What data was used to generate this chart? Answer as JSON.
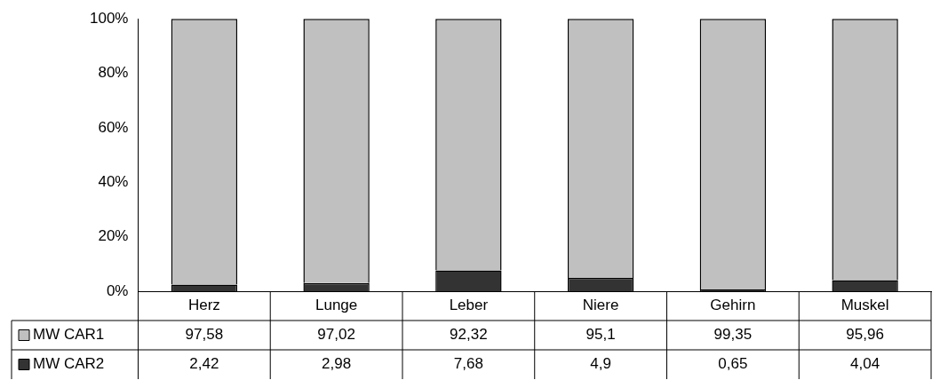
{
  "chart_data": {
    "type": "bar",
    "stacked": true,
    "categories": [
      "Herz",
      "Lunge",
      "Leber",
      "Niere",
      "Gehirn",
      "Muskel"
    ],
    "series": [
      {
        "name": "MW CAR2",
        "color": "#333333",
        "values": [
          2.42,
          2.98,
          7.68,
          4.9,
          0.65,
          4.04
        ],
        "value_labels": [
          "2,42",
          "2,98",
          "7,68",
          "4,9",
          "0,65",
          "4,04"
        ]
      },
      {
        "name": "MW CAR1",
        "color": "#c0c0c0",
        "values": [
          97.58,
          97.02,
          92.32,
          95.1,
          99.35,
          95.96
        ],
        "value_labels": [
          "97,58",
          "97,02",
          "92,32",
          "95,1",
          "99,35",
          "95,96"
        ]
      }
    ],
    "ylim": [
      0,
      100
    ],
    "yticks": [
      {
        "value": 0,
        "label": "0%"
      },
      {
        "value": 20,
        "label": "20%"
      },
      {
        "value": 40,
        "label": "40%"
      },
      {
        "value": 60,
        "label": "60%"
      },
      {
        "value": 80,
        "label": "80%"
      },
      {
        "value": 100,
        "label": "100%"
      }
    ],
    "grid": false,
    "legend": "bottom"
  }
}
